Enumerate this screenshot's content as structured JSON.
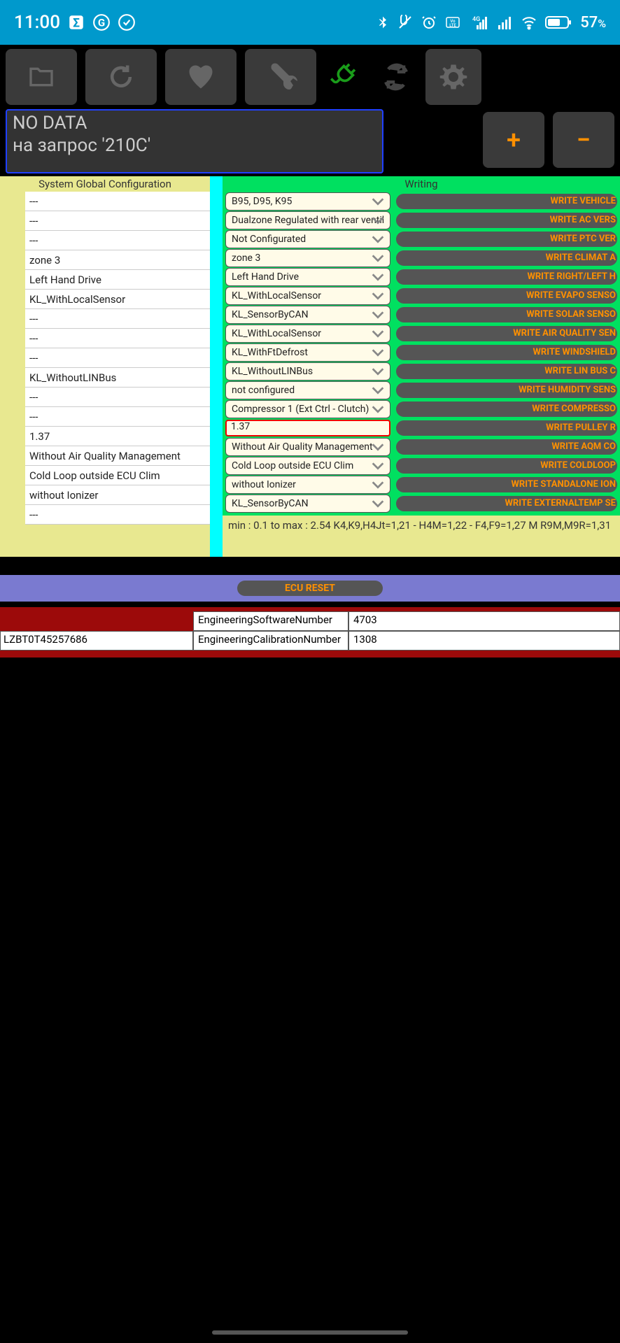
{
  "status": {
    "time": "11:00",
    "battery": "57",
    "pct": "%"
  },
  "message": {
    "line1": "NO DATA",
    "line2": "на запрос '210C'"
  },
  "pm": {
    "plus": "+",
    "minus": "−"
  },
  "left": {
    "header": "System Global Configuration",
    "rows": [
      "---",
      "---",
      "---",
      "zone 3",
      "Left Hand Drive",
      "KL_WithLocalSensor",
      "---",
      "---",
      "---",
      "KL_WithoutLINBus",
      "---",
      "---",
      "1.37",
      "Without Air Quality Management",
      "Cold Loop outside ECU Clim",
      "without Ionizer",
      "---"
    ]
  },
  "right": {
    "header": "Writing",
    "rows": [
      {
        "dd": "B95, D95, K95",
        "btn": "WRITE VEHICLE"
      },
      {
        "dd": "Dualzone Regulated with rear ventil",
        "btn": "WRITE AC VERS"
      },
      {
        "dd": "Not Configurated",
        "btn": "WRITE PTC VER"
      },
      {
        "dd": "zone 3",
        "btn": "WRITE CLIMAT A"
      },
      {
        "dd": "Left Hand Drive",
        "btn": "WRITE RIGHT/LEFT H"
      },
      {
        "dd": "KL_WithLocalSensor",
        "btn": "WRITE EVAPO SENSO"
      },
      {
        "dd": "KL_SensorByCAN",
        "btn": "WRITE SOLAR SENSO"
      },
      {
        "dd": "KL_WithLocalSensor",
        "btn": "WRITE AIR QUALITY SEN"
      },
      {
        "dd": "KL_WithFtDefrost",
        "btn": "WRITE WINDSHIELD"
      },
      {
        "dd": "KL_WithoutLINBus",
        "btn": "WRITE LIN BUS C"
      },
      {
        "dd": "not configured",
        "btn": "WRITE HUMIDITY SENS"
      },
      {
        "dd": "Compressor 1 (Ext Ctrl - Clutch)",
        "btn": "WRITE COMPRESSO"
      },
      {
        "dd": "1.37",
        "btn": "WRITE PULLEY R",
        "text": true
      },
      {
        "dd": "Without Air Quality Management",
        "btn": "WRITE AQM CO"
      },
      {
        "dd": "Cold Loop outside ECU Clim",
        "btn": "WRITE COLDLOOP"
      },
      {
        "dd": "without Ionizer",
        "btn": "WRITE STANDALONE ION"
      },
      {
        "dd": "KL_SensorByCAN",
        "btn": "WRITE EXTERNALTEMP SE"
      }
    ],
    "note": "min : 0.1 to max : 2.54     K4,K9,H4Jt=1,21 - H4M=1,22 - F4,F9=1,27     M R9M,M9R=1,31"
  },
  "ecu": {
    "label": "ECU RESET"
  },
  "red": {
    "vin": "LZBT0T45257686",
    "r1l": "EngineeringSoftwareNumber",
    "r1v": "4703",
    "r2l": "EngineeringCalibrationNumber",
    "r2v": "1308"
  }
}
